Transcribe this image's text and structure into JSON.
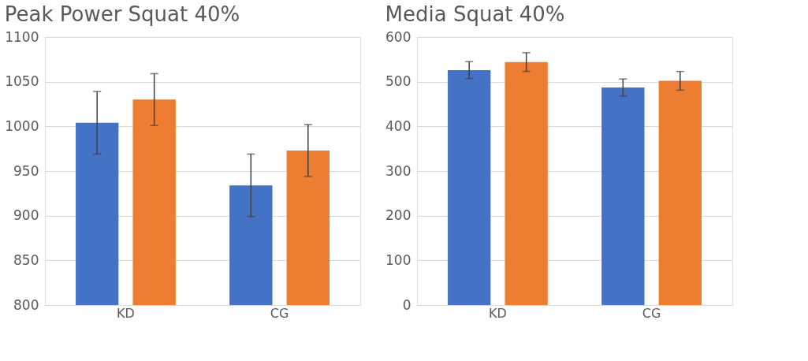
{
  "chart_data": [
    {
      "type": "bar",
      "title": "Peak Power Squat 40%",
      "categories": [
        "KD",
        "CG"
      ],
      "series": [
        {
          "color": "#4472c4",
          "values": [
            1004,
            934
          ],
          "errors": [
            35,
            35
          ]
        },
        {
          "color": "#ed7d31",
          "values": [
            1030,
            973
          ],
          "errors": [
            29,
            29
          ]
        }
      ],
      "ylim": [
        800,
        1100
      ],
      "yticks": [
        800,
        850,
        900,
        950,
        1000,
        1050,
        1100
      ],
      "grid": "y"
    },
    {
      "type": "bar",
      "title": "Media Squat 40%",
      "categories": [
        "KD",
        "CG"
      ],
      "series": [
        {
          "color": "#4472c4",
          "values": [
            526,
            487
          ],
          "errors": [
            19,
            19
          ]
        },
        {
          "color": "#ed7d31",
          "values": [
            544,
            502
          ],
          "errors": [
            21,
            21
          ]
        }
      ],
      "ylim": [
        0,
        600
      ],
      "yticks": [
        0,
        100,
        200,
        300,
        400,
        500,
        600
      ],
      "grid": "y"
    }
  ]
}
